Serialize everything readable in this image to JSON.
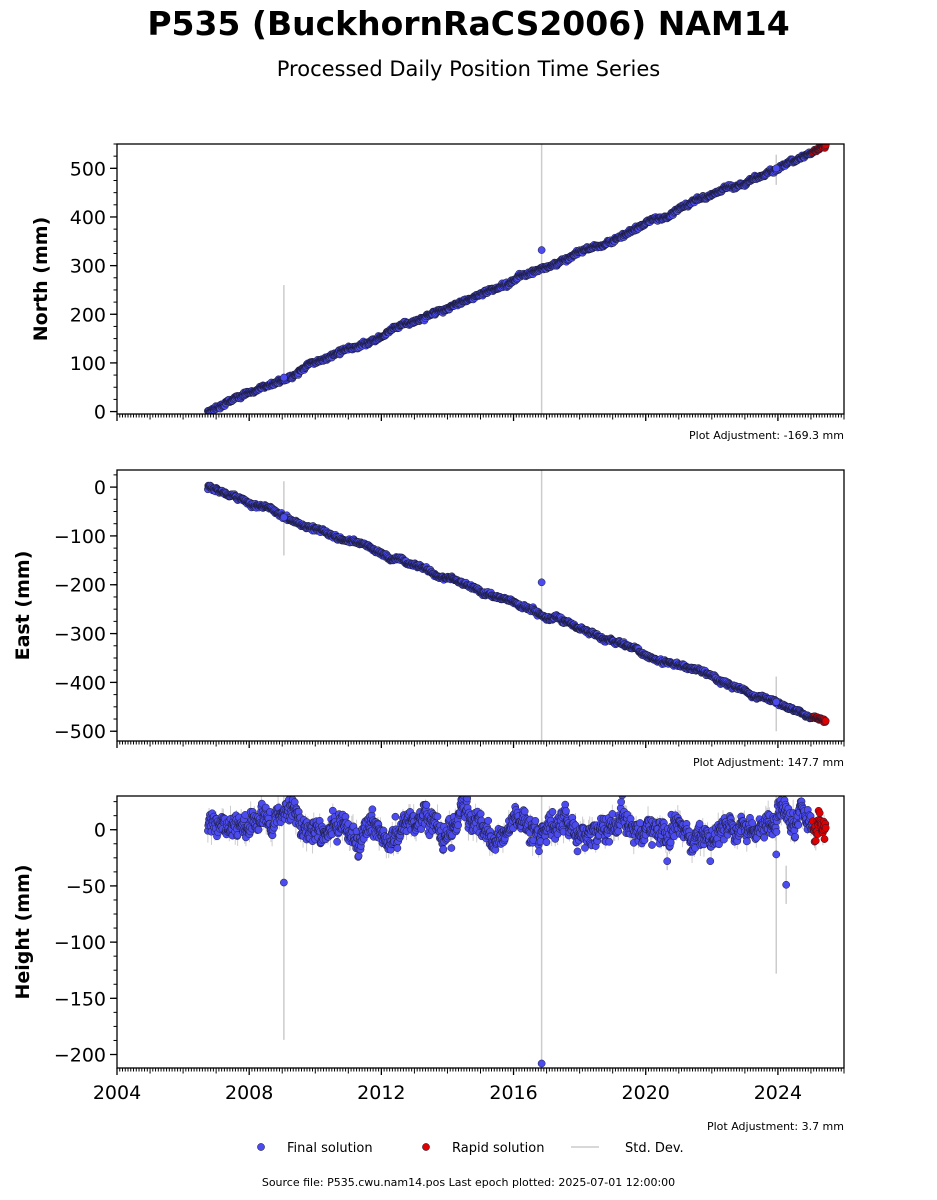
{
  "header": {
    "title": "P535 (BuckhornRaCS2006) NAM14",
    "subtitle": "Processed Daily Position Time Series"
  },
  "footer": {
    "source": "Source file: P535.cwu.nam14.pos  Last epoch plotted: 2025-07-01 12:00:00"
  },
  "colors": {
    "final": "#4b4bf0",
    "rapid": "#e00000",
    "stddev": "#cccccc",
    "edge": "#1a1a33"
  },
  "legend": {
    "placement": "bottom-center",
    "entries": [
      {
        "label": "Final solution",
        "marker": "dot",
        "color": "#4b4bf0"
      },
      {
        "label": "Rapid solution",
        "marker": "dot",
        "color": "#e00000"
      },
      {
        "label": "Std. Dev.",
        "marker": "line",
        "color": "#cccccc"
      }
    ]
  },
  "chart_data": [
    {
      "type": "scatter",
      "ylabel": "North (mm)",
      "xlim": [
        2004,
        2026
      ],
      "ylim": [
        -5,
        550
      ],
      "yticks": [
        0,
        100,
        200,
        300,
        400,
        500
      ],
      "adjustment": "Plot Adjustment: -169.3 mm",
      "trend": {
        "x": [
          2006.75,
          2025.45
        ],
        "y": [
          0,
          545
        ]
      },
      "scatter_sd": 3,
      "std_dev_range": [
        1,
        3
      ],
      "final_range": [
        2006.75,
        2025.05
      ],
      "rapid_range": [
        2025.05,
        2025.45
      ],
      "outliers": [
        {
          "x": 2016.85,
          "y": 332,
          "sd_low": -5,
          "sd_high": 550
        },
        {
          "x": 2009.05,
          "y": 70,
          "sd_low": 62,
          "sd_high": 260
        },
        {
          "x": 2023.95,
          "y": 500,
          "sd_low": 466,
          "sd_high": 528
        }
      ]
    },
    {
      "type": "scatter",
      "ylabel": "East (mm)",
      "xlim": [
        2004,
        2026
      ],
      "ylim": [
        -520,
        35
      ],
      "yticks": [
        0,
        -100,
        -200,
        -300,
        -400,
        -500
      ],
      "adjustment": "Plot Adjustment: 147.7 mm",
      "trend": {
        "x": [
          2006.75,
          2025.45
        ],
        "y": [
          0,
          -480
        ]
      },
      "scatter_sd": 3,
      "std_dev_range": [
        1,
        3
      ],
      "final_range": [
        2006.75,
        2025.05
      ],
      "rapid_range": [
        2025.05,
        2025.45
      ],
      "outliers": [
        {
          "x": 2016.85,
          "y": -195,
          "sd_low": -520,
          "sd_high": 35
        },
        {
          "x": 2009.05,
          "y": -62,
          "sd_low": -140,
          "sd_high": 12
        },
        {
          "x": 2023.95,
          "y": -440,
          "sd_low": -500,
          "sd_high": -388
        }
      ]
    },
    {
      "type": "scatter",
      "ylabel": "Height (mm)",
      "xlim": [
        2004,
        2026
      ],
      "ylim": [
        -212,
        30
      ],
      "yticks": [
        0,
        -50,
        -100,
        -150,
        -200
      ],
      "xticks": [
        2004,
        2008,
        2012,
        2016,
        2020,
        2024
      ],
      "adjustment": "Plot Adjustment: 3.7 mm",
      "trend": {
        "x": [
          2006.75,
          2025.45
        ],
        "y": [
          0,
          0
        ]
      },
      "scatter_sd": 8,
      "std_dev_range": [
        4,
        12
      ],
      "final_range": [
        2006.75,
        2025.05
      ],
      "rapid_range": [
        2025.05,
        2025.45
      ],
      "outliers": [
        {
          "x": 2016.85,
          "y": -208,
          "sd_low": -212,
          "sd_high": 30
        },
        {
          "x": 2009.05,
          "y": -47,
          "sd_low": -187,
          "sd_high": 30
        },
        {
          "x": 2023.95,
          "y": -22,
          "sd_low": -128,
          "sd_high": 30
        },
        {
          "x": 2024.25,
          "y": -49,
          "sd_low": -66,
          "sd_high": -32
        },
        {
          "x": 2020.65,
          "y": -28,
          "sd_low": -36,
          "sd_high": -20
        }
      ]
    }
  ]
}
